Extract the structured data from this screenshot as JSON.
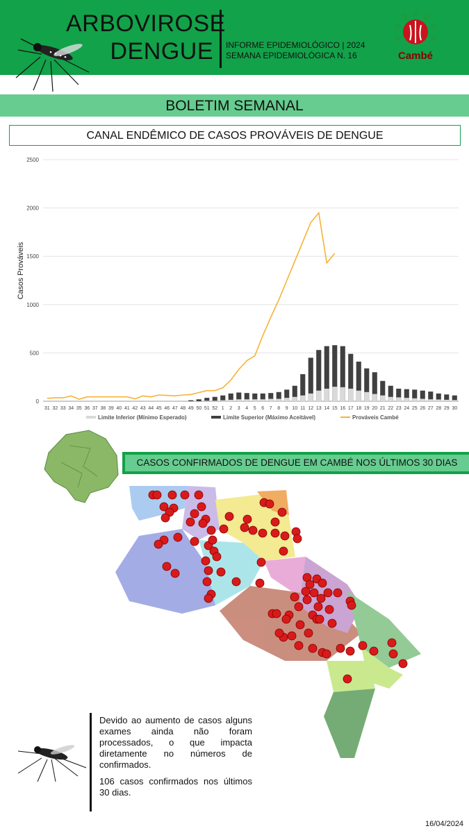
{
  "header": {
    "title_line1": "ARBOVIROSE",
    "title_line2": "DENGUE",
    "informe_line1": "INFORME EPIDEMIOLÓGICO | 2024",
    "informe_line2": "SEMANA EPIDEMIOLÓGICA  N. 16",
    "logo_text": "Cambé"
  },
  "banner": {
    "label": "BOLETIM SEMANAL"
  },
  "chart_section": {
    "title": "CANAL ENDÊMICO DE CASOS PROVÁVEIS DE DENGUE"
  },
  "chart_data": {
    "type": "bar",
    "title": "CANAL ENDÊMICO DE CASOS PROVÁVEIS DE DENGUE",
    "ylabel": "Casos Prováveis",
    "xlabel": "",
    "ylim": [
      0,
      2500
    ],
    "yticks": [
      0,
      500,
      1000,
      1500,
      2000,
      2500
    ],
    "grid": true,
    "legend_position": "bottom",
    "categories": [
      "31",
      "32",
      "33",
      "34",
      "35",
      "36",
      "37",
      "38",
      "39",
      "40",
      "41",
      "42",
      "43",
      "44",
      "45",
      "46",
      "47",
      "48",
      "49",
      "50",
      "51",
      "52",
      "1",
      "2",
      "3",
      "4",
      "5",
      "6",
      "7",
      "8",
      "9",
      "10",
      "11",
      "12",
      "13",
      "14",
      "15",
      "16",
      "17",
      "18",
      "19",
      "20",
      "21",
      "22",
      "23",
      "24",
      "25",
      "26",
      "27",
      "28",
      "29",
      "30"
    ],
    "series": [
      {
        "name": "Limite Inferior (Mínimo Esperado)",
        "kind": "bar",
        "color": "#d9d9d9",
        "values": [
          0,
          0,
          0,
          0,
          0,
          0,
          0,
          0,
          0,
          0,
          0,
          0,
          0,
          0,
          0,
          0,
          0,
          0,
          0,
          0,
          5,
          5,
          10,
          15,
          20,
          20,
          20,
          20,
          25,
          25,
          35,
          45,
          60,
          80,
          110,
          130,
          150,
          145,
          130,
          110,
          95,
          75,
          60,
          45,
          40,
          35,
          30,
          25,
          20,
          18,
          15,
          12
        ]
      },
      {
        "name": "Limite Superior (Máximo Aceitável)",
        "kind": "bar",
        "color": "#404040",
        "values": [
          0,
          0,
          0,
          0,
          0,
          0,
          0,
          0,
          0,
          0,
          0,
          0,
          0,
          0,
          0,
          0,
          0,
          0,
          10,
          20,
          35,
          45,
          60,
          80,
          90,
          85,
          80,
          80,
          85,
          95,
          120,
          160,
          280,
          450,
          530,
          570,
          580,
          570,
          490,
          410,
          340,
          300,
          210,
          160,
          130,
          125,
          120,
          110,
          100,
          80,
          70,
          60
        ]
      },
      {
        "name": "Prováveis Cambé",
        "kind": "line",
        "color": "#f5b335",
        "values": [
          30,
          35,
          35,
          55,
          20,
          45,
          45,
          45,
          45,
          45,
          45,
          25,
          55,
          45,
          65,
          60,
          55,
          65,
          70,
          90,
          110,
          110,
          140,
          220,
          330,
          420,
          470,
          680,
          870,
          1050,
          1250,
          1450,
          1650,
          1850,
          1950,
          1430,
          1530,
          null,
          null,
          null,
          null,
          null,
          null,
          null,
          null,
          null,
          null,
          null,
          null,
          null,
          null,
          null
        ]
      }
    ]
  },
  "map_section": {
    "title": "CASOS CONFIRMADOS DE DENGUE EM CAMBÉ NOS ÚLTIMOS 30 DIAS"
  },
  "note": {
    "paragraph1": "Devido ao aumento de casos alguns exames ainda não foram processados, o que impacta diretamente no números de confirmados.",
    "paragraph2": "106 casos confirmados nos últimos 30 dias."
  },
  "footer": {
    "date": "16/04/2024"
  }
}
